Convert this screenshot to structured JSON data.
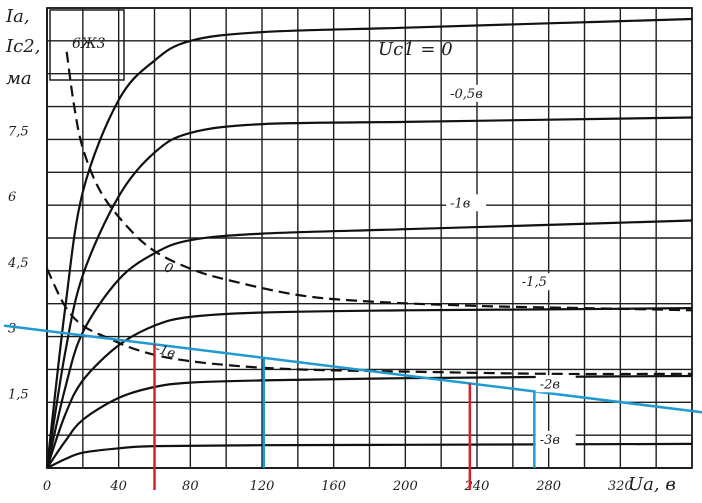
{
  "chart_data": {
    "type": "line",
    "tube_label": "6Ж3",
    "ylabel_lines": [
      "Iа,",
      "Iс2,",
      "ма"
    ],
    "xlabel": "Uа, в",
    "legend_title": "Uс1 = 0",
    "xlim": [
      0,
      360
    ],
    "ylim": [
      0,
      10.5
    ],
    "x_ticks": [
      "0",
      "40",
      "80",
      "120",
      "160",
      "200",
      "240",
      "280",
      "320"
    ],
    "y_ticks": [
      "1,5",
      "3",
      "4,5",
      "6",
      "7,5"
    ],
    "grid": true,
    "series_solid": [
      {
        "name": "0",
        "points": [
          [
            0,
            0
          ],
          [
            10,
            3.6
          ],
          [
            20,
            6.3
          ],
          [
            40,
            8.4
          ],
          [
            60,
            9.3
          ],
          [
            80,
            9.75
          ],
          [
            120,
            9.95
          ],
          [
            200,
            10.05
          ],
          [
            280,
            10.15
          ],
          [
            360,
            10.25
          ]
        ]
      },
      {
        "name": "-0,5в",
        "points": [
          [
            0,
            0
          ],
          [
            10,
            2.6
          ],
          [
            20,
            4.4
          ],
          [
            40,
            6.2
          ],
          [
            60,
            7.2
          ],
          [
            80,
            7.65
          ],
          [
            120,
            7.85
          ],
          [
            200,
            7.9
          ],
          [
            280,
            7.95
          ],
          [
            360,
            8.0
          ]
        ]
      },
      {
        "name": "-1в",
        "points": [
          [
            0,
            0
          ],
          [
            10,
            1.8
          ],
          [
            20,
            3.1
          ],
          [
            40,
            4.3
          ],
          [
            60,
            4.9
          ],
          [
            80,
            5.2
          ],
          [
            120,
            5.35
          ],
          [
            200,
            5.45
          ],
          [
            280,
            5.55
          ],
          [
            360,
            5.65
          ]
        ]
      },
      {
        "name": "-1,5",
        "points": [
          [
            0,
            0
          ],
          [
            10,
            1.2
          ],
          [
            20,
            2.0
          ],
          [
            40,
            2.8
          ],
          [
            60,
            3.25
          ],
          [
            80,
            3.45
          ],
          [
            120,
            3.55
          ],
          [
            200,
            3.6
          ],
          [
            280,
            3.62
          ],
          [
            360,
            3.65
          ]
        ]
      },
      {
        "name": "-2в",
        "points": [
          [
            0,
            0
          ],
          [
            10,
            0.6
          ],
          [
            20,
            1.1
          ],
          [
            40,
            1.6
          ],
          [
            60,
            1.85
          ],
          [
            80,
            1.95
          ],
          [
            120,
            2.0
          ],
          [
            200,
            2.05
          ],
          [
            280,
            2.08
          ],
          [
            360,
            2.1
          ]
        ]
      },
      {
        "name": "-3в",
        "points": [
          [
            0,
            0
          ],
          [
            10,
            0.2
          ],
          [
            20,
            0.35
          ],
          [
            40,
            0.45
          ],
          [
            60,
            0.5
          ],
          [
            120,
            0.52
          ],
          [
            200,
            0.53
          ],
          [
            360,
            0.55
          ]
        ]
      }
    ],
    "series_dashed": [
      {
        "name": "0",
        "points": [
          [
            11,
            9.5
          ],
          [
            15,
            8.3
          ],
          [
            20,
            7.3
          ],
          [
            30,
            6.3
          ],
          [
            45,
            5.5
          ],
          [
            60,
            4.95
          ],
          [
            80,
            4.55
          ],
          [
            100,
            4.3
          ],
          [
            140,
            3.95
          ],
          [
            180,
            3.8
          ],
          [
            240,
            3.7
          ],
          [
            300,
            3.65
          ],
          [
            360,
            3.6
          ]
        ]
      },
      {
        "name": "-1в",
        "points": [
          [
            0,
            4.55
          ],
          [
            10,
            3.7
          ],
          [
            20,
            3.25
          ],
          [
            35,
            2.95
          ],
          [
            50,
            2.7
          ],
          [
            70,
            2.5
          ],
          [
            100,
            2.35
          ],
          [
            140,
            2.25
          ],
          [
            200,
            2.2
          ],
          [
            280,
            2.15
          ],
          [
            360,
            2.15
          ]
        ]
      }
    ],
    "overlay": {
      "load_line_color": "#1e9bd0",
      "marker_color": "#d8202c",
      "load_line": [
        [
          -24,
          3.25
        ],
        [
          370,
          1.25
        ]
      ],
      "blue_verticals_x": [
        121,
        272
      ],
      "red_verticals_x": [
        60,
        236
      ]
    }
  }
}
